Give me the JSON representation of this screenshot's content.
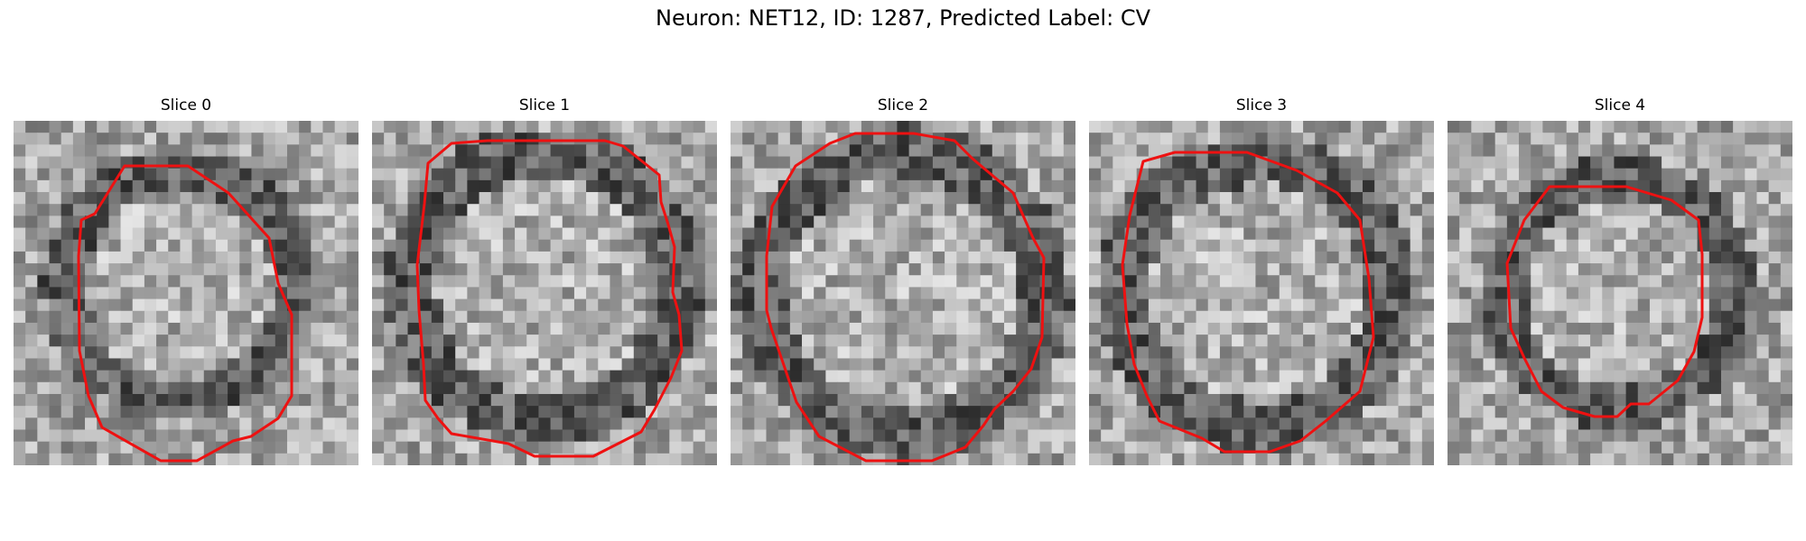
{
  "figure": {
    "title": "Neuron: NET12, ID: 1287, Predicted Label: CV",
    "contour_color": "#ee1111"
  },
  "panels": [
    {
      "title": "Slice 0"
    },
    {
      "title": "Slice 1"
    },
    {
      "title": "Slice 2"
    },
    {
      "title": "Slice 3"
    },
    {
      "title": "Slice 4"
    }
  ]
}
